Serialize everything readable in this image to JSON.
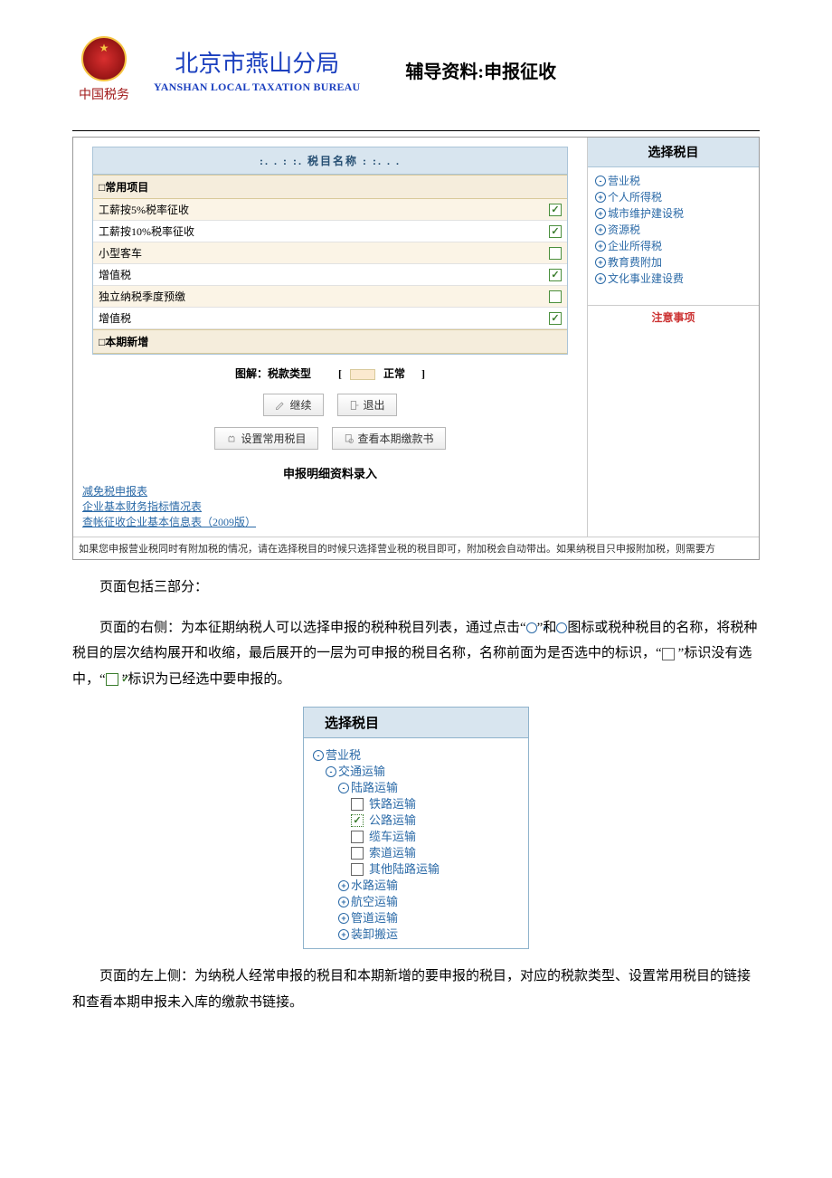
{
  "header": {
    "title_cn": "北京市燕山分局",
    "title_en": "YANSHAN LOCAL TAXATION BUREAU",
    "logo_sub": "中国税务",
    "doc_title": "辅导资料:申报征收"
  },
  "right_panel": {
    "title": "选择税目",
    "items": [
      {
        "icon": "minus",
        "label": "营业税"
      },
      {
        "icon": "plus",
        "label": "个人所得税"
      },
      {
        "icon": "plus",
        "label": "城市维护建设税"
      },
      {
        "icon": "plus",
        "label": "资源税"
      },
      {
        "icon": "plus",
        "label": "企业所得税"
      },
      {
        "icon": "plus",
        "label": "教育费附加"
      },
      {
        "icon": "plus",
        "label": "文化事业建设费"
      }
    ]
  },
  "namebox": {
    "title": ":. . : :. 税目名称 : :. . .",
    "sec1": "□常用项目",
    "rows": [
      {
        "label": "工薪按5%税率征收",
        "checked": true
      },
      {
        "label": "工薪按10%税率征收",
        "checked": true
      },
      {
        "label": "小型客车",
        "checked": false
      },
      {
        "label": "增值税",
        "checked": true
      },
      {
        "label": "独立纳税季度预缴",
        "checked": false
      },
      {
        "label": "增值税",
        "checked": true
      }
    ],
    "sec2": "□本期新增"
  },
  "legend": {
    "prefix": "图解：税款类型",
    "bracket_l": "[",
    "normal": "正常",
    "bracket_r": "]"
  },
  "buttons": {
    "continue": "继续",
    "exit": "退出",
    "set": "设置常用税目",
    "view": "查看本期缴款书"
  },
  "subhd": "申报明细资料录入",
  "links": [
    "减免税申报表",
    "企业基本财务指标情况表",
    "查帐征收企业基本信息表（2009版）"
  ],
  "notice_title": "注意事项",
  "notice_line": "如果您申报营业税同时有附加税的情况，请在选择税目的时候只选择营业税的税目即可，附加税会自动带出。如果纳税目只申报附加税，则需要方",
  "para1": "页面包括三部分：",
  "para2_a": "页面的右侧：为本征期纳税人可以选择申报的税种税目列表，通过点击“",
  "para2_b": "”和",
  "para2_c": "图标或税种税目的名称，将税种税目的层次结构展开和收缩，最后展开的一层为可申报的税目名称，名称前面为是否选中的标识，“",
  "para2_d": "”标识没有选中，“",
  "para2_e": "”标识为已经选中要申报的。",
  "treebox": {
    "title": "选择税目",
    "lines": [
      {
        "indent": 0,
        "icon": "minus",
        "label": "营业税"
      },
      {
        "indent": 1,
        "icon": "minus",
        "label": "交通运输"
      },
      {
        "indent": 2,
        "icon": "minus",
        "label": "陆路运输"
      },
      {
        "indent": 3,
        "cb": "unchecked",
        "label": "铁路运输"
      },
      {
        "indent": 3,
        "cb": "checked",
        "label": "公路运输",
        "dotted": true
      },
      {
        "indent": 3,
        "cb": "unchecked",
        "label": "缆车运输"
      },
      {
        "indent": 3,
        "cb": "unchecked",
        "label": "索道运输"
      },
      {
        "indent": 3,
        "cb": "unchecked",
        "label": "其他陆路运输"
      },
      {
        "indent": 2,
        "icon": "plus",
        "label": "水路运输"
      },
      {
        "indent": 2,
        "icon": "plus",
        "label": "航空运输"
      },
      {
        "indent": 2,
        "icon": "plus",
        "label": "管道运输"
      },
      {
        "indent": 2,
        "icon": "plus",
        "label": "装卸搬运"
      }
    ]
  },
  "para3": "页面的左上侧：为纳税人经常申报的税目和本期新增的要申报的税目，对应的税款类型、设置常用税目的链接和查看本期申报未入库的缴款书链接。"
}
